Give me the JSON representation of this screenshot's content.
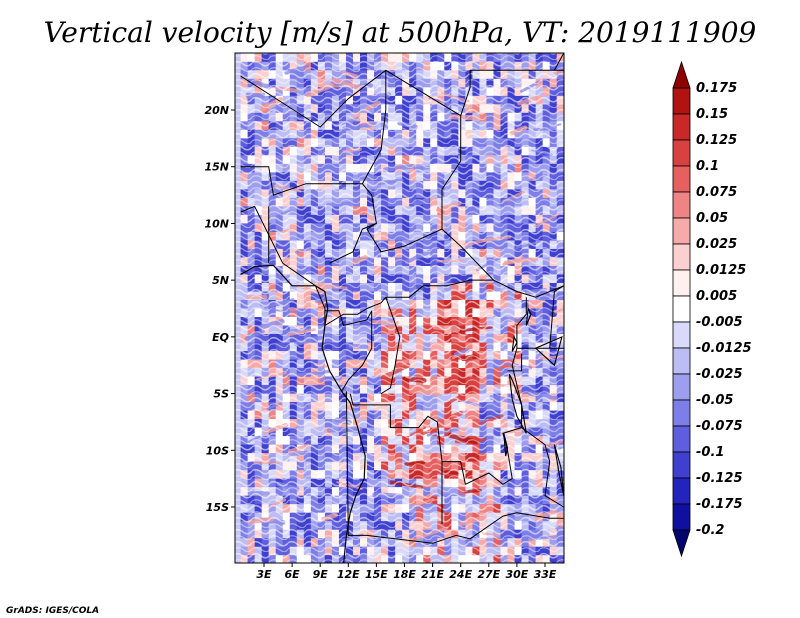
{
  "chart_data": {
    "type": "heatmap",
    "title": "Vertical velocity [m/s] at 500hPa, VT: 2019111909",
    "xlabel": "",
    "ylabel": "",
    "x_tick_labels": [
      "3E",
      "6E",
      "9E",
      "12E",
      "15E",
      "18E",
      "21E",
      "24E",
      "27E",
      "30E",
      "33E"
    ],
    "y_tick_labels": [
      "20N",
      "15N",
      "10N",
      "5N",
      "EQ",
      "5S",
      "10S",
      "15S"
    ],
    "xlim": [
      0.5,
      35
    ],
    "ylim": [
      -20,
      25
    ],
    "colorbar": {
      "levels": [
        "0.175",
        "0.15",
        "0.125",
        "0.1",
        "0.075",
        "0.05",
        "0.025",
        "0.0125",
        "0.005",
        "-0.005",
        "-0.0125",
        "-0.025",
        "-0.05",
        "-0.075",
        "-0.1",
        "-0.125",
        "-0.175",
        "-0.2"
      ],
      "colors": [
        "#8f0000",
        "#b11212",
        "#c92828",
        "#d94040",
        "#e66060",
        "#ee8484",
        "#f6aaaa",
        "#fbd0d0",
        "#fff0f0",
        "#ffffff",
        "#d9d9fa",
        "#bdbdf5",
        "#9e9eef",
        "#7e7ee8",
        "#5e5ede",
        "#3f3fd0",
        "#2323bd",
        "#1010a0",
        "#050570"
      ]
    },
    "field_description": "Noisy mixed positive/negative vertical velocity field; mostly weak negative (blue) with scattered positive (red) streaks, strongest red patches over Central Africa (~15E-25E, 0-15S).",
    "credit": "GrADS: IGES/COLA"
  }
}
